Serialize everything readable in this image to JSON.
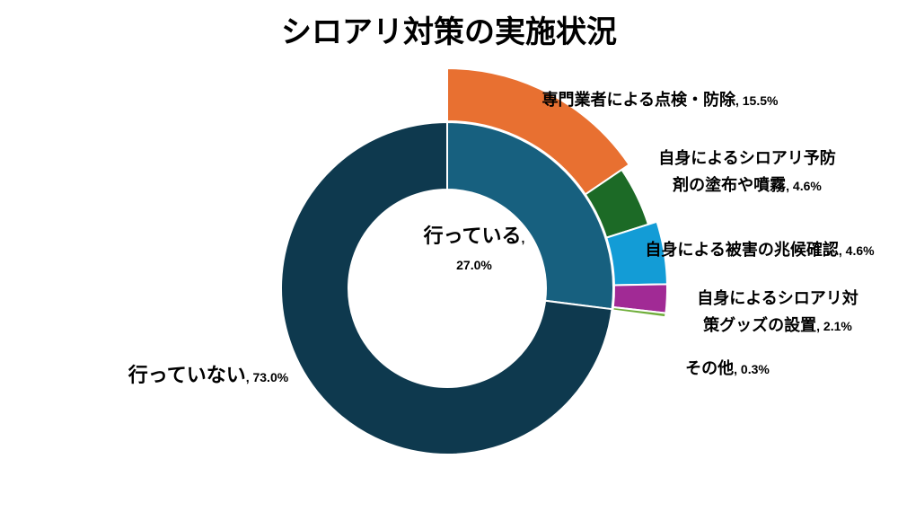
{
  "chart_data": {
    "type": "pie",
    "title": "シロアリ対策の実施状況",
    "inner": [
      {
        "name": "行っている",
        "value": 27.0,
        "pct_label": "27.0%",
        "color": "#17607f"
      },
      {
        "name": "行っていない",
        "value": 73.0,
        "pct_label": "73.0%",
        "color": "#0e394e"
      }
    ],
    "outer": [
      {
        "name": "専門業者による点検・防除",
        "value": 15.5,
        "pct_label": "15.5%",
        "color": "#e87031"
      },
      {
        "name": "自身によるシロアリ予防剤の塗布や噴霧",
        "lines": [
          "自身によるシロアリ予防",
          "剤の塗布や噴霧"
        ],
        "value": 4.6,
        "pct_label": "4.6%",
        "color": "#1c6a26"
      },
      {
        "name": "自身による被害の兆候確認",
        "value": 4.6,
        "pct_label": "4.6%",
        "color": "#139cd6"
      },
      {
        "name": "自身によるシロアリ対策グッズの設置",
        "lines": [
          "自身によるシロアリ対",
          "策グッズの設置"
        ],
        "value": 2.1,
        "pct_label": "2.1%",
        "color": "#a12a95"
      },
      {
        "name": "その他",
        "value": 0.3,
        "pct_label": "0.3%",
        "color": "#6fae3a"
      }
    ]
  }
}
